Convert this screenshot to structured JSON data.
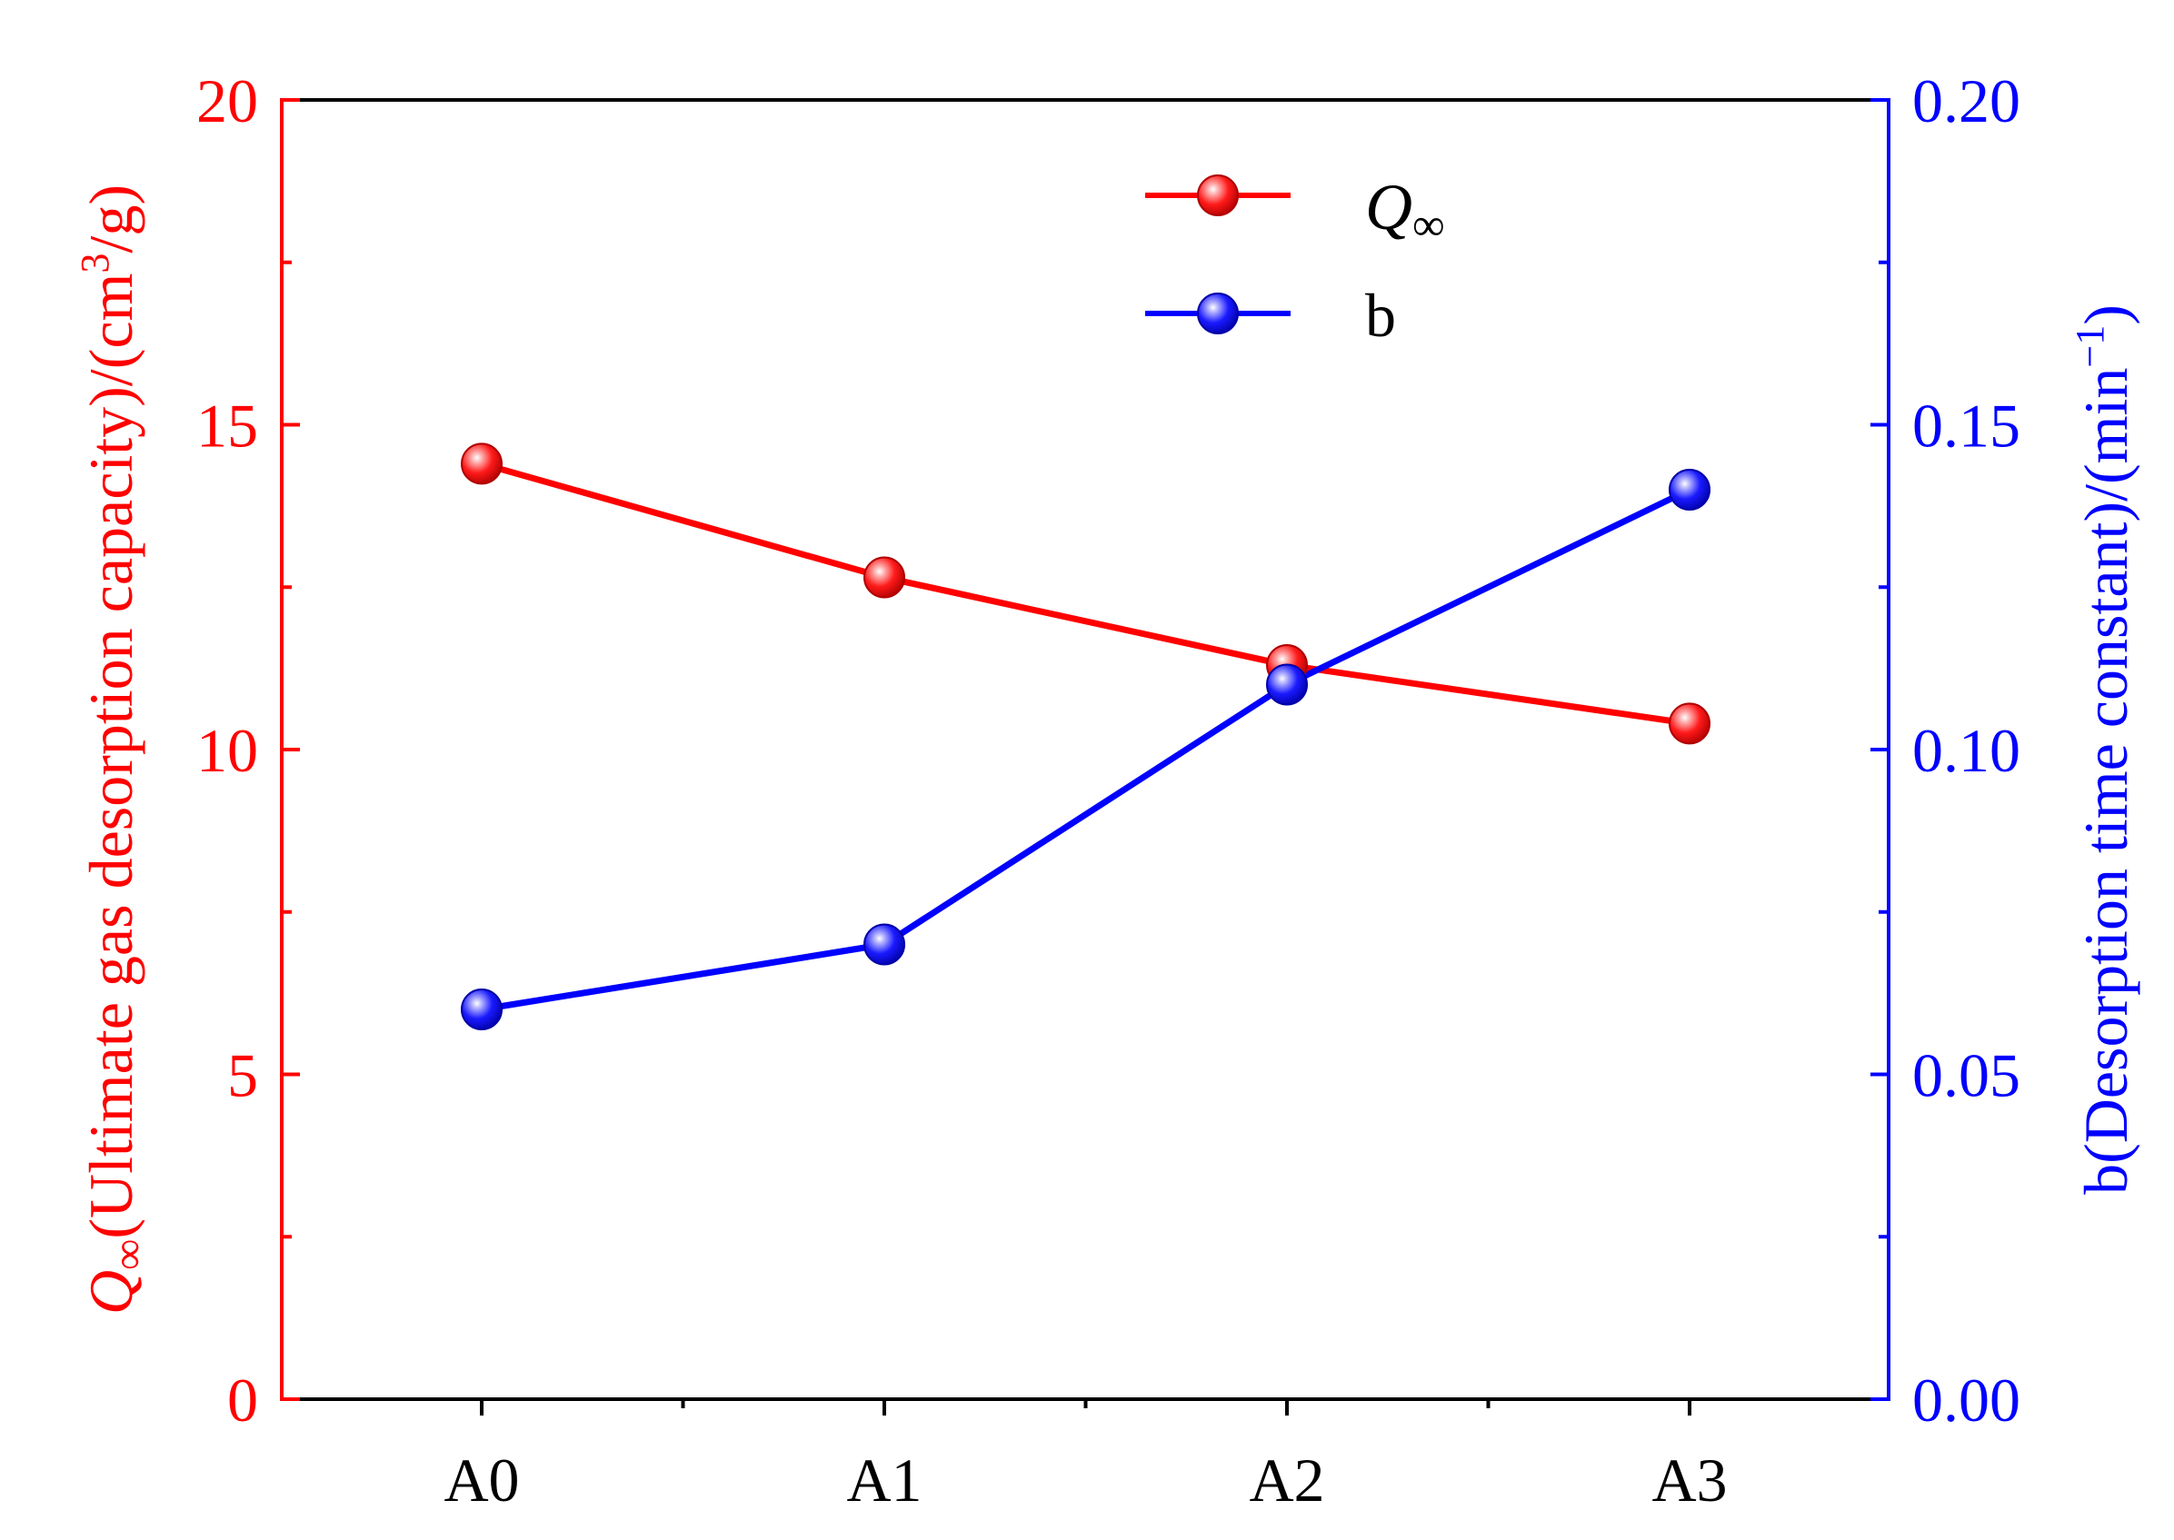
{
  "chart_data": {
    "type": "line",
    "categories": [
      "A0",
      "A1",
      "A2",
      "A3"
    ],
    "series": [
      {
        "name": "Q∞",
        "axis": "left",
        "color": "#ff0000",
        "values": [
          14.4,
          12.65,
          11.3,
          10.4
        ]
      },
      {
        "name": "b",
        "axis": "right",
        "color": "#0000ff",
        "values": [
          0.06,
          0.07,
          0.11,
          0.14
        ]
      }
    ],
    "left_axis": {
      "label": "Q∞(Ultimate gas desorption capacity)/(cm³/g)",
      "range": [
        0,
        20
      ],
      "ticks": [
        "0",
        "5",
        "10",
        "15",
        "20"
      ],
      "color": "#ff0000"
    },
    "right_axis": {
      "label": "b(Desorption time constant)/(min⁻¹)",
      "range": [
        0,
        0.2
      ],
      "ticks": [
        "0.00",
        "0.05",
        "0.10",
        "0.15",
        "0.20"
      ],
      "color": "#0000ff"
    },
    "legend_position": "top-center",
    "grid": false
  }
}
